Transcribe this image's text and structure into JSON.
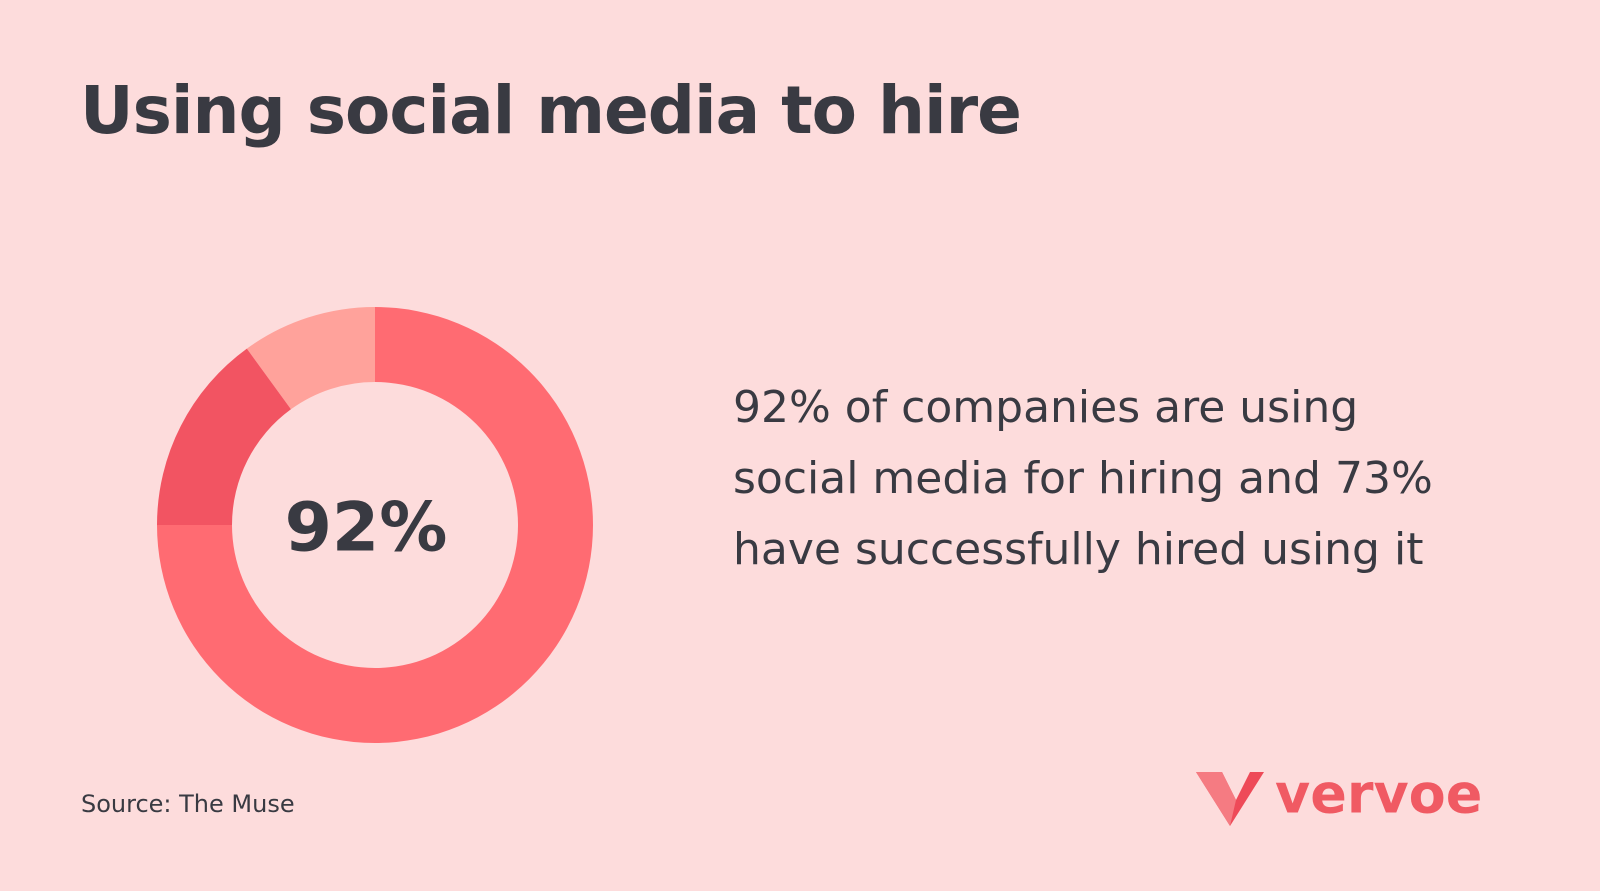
{
  "chart_data": {
    "type": "pie",
    "title": "Using social media to hire",
    "center_label": "92%",
    "categories": [
      null,
      null,
      null
    ],
    "values": [
      75,
      15,
      10
    ],
    "colors": [
      "#ff6b72",
      "#f25462",
      "#ffa29b"
    ],
    "description": "92% of companies are using social media for hiring and 73% have successfully hired using it",
    "source": "Source: The Muse"
  },
  "logo": "vervoe"
}
